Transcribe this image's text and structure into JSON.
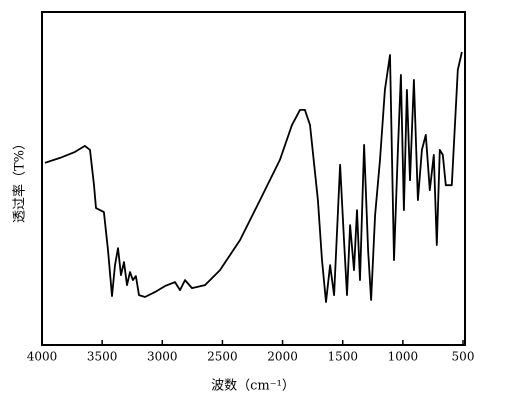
{
  "chart_data": {
    "type": "line",
    "x_label": "波数（cm⁻¹）",
    "y_label": "透过率（T%）",
    "x": [
      3975,
      3850,
      3726,
      3643,
      3601,
      3568,
      3551,
      3485,
      3451,
      3418,
      3393,
      3368,
      3343,
      3318,
      3293,
      3268,
      3244,
      3219,
      3194,
      3144,
      3061,
      2978,
      2894,
      2853,
      2811,
      2753,
      2645,
      2520,
      2354,
      2188,
      2022,
      1922,
      1855,
      1814,
      1772,
      1706,
      1672,
      1639,
      1605,
      1572,
      1522,
      1489,
      1464,
      1439,
      1406,
      1381,
      1356,
      1322,
      1289,
      1264,
      1231,
      1190,
      1149,
      1107,
      1074,
      1041,
      1016,
      991,
      966,
      941,
      908,
      875,
      842,
      809,
      776,
      743,
      718,
      693,
      668,
      643,
      593,
      543,
      509
    ],
    "values": [
      54.7,
      56.2,
      58.0,
      59.8,
      58.6,
      48.0,
      41.1,
      39.9,
      28.5,
      14.7,
      24.0,
      29.1,
      21.0,
      24.9,
      18.0,
      21.9,
      19.5,
      20.7,
      15.0,
      14.4,
      15.9,
      17.7,
      18.9,
      16.5,
      19.5,
      17.1,
      18.0,
      22.5,
      31.5,
      43.5,
      55.6,
      66.1,
      70.6,
      70.6,
      66.1,
      43.5,
      25.5,
      12.9,
      24.0,
      15.0,
      54.1,
      31.5,
      15.0,
      36.0,
      22.5,
      40.5,
      19.5,
      60.1,
      28.5,
      13.5,
      39.0,
      55.6,
      76.6,
      87.1,
      25.5,
      58.6,
      81.1,
      40.5,
      76.6,
      49.5,
      79.6,
      43.5,
      58.6,
      63.1,
      46.5,
      57.1,
      30.0,
      58.6,
      57.1,
      48.0,
      48.0,
      82.6,
      88.0
    ],
    "color": "#000000",
    "xlim": [
      4000,
      500
    ],
    "xticks": [
      4000,
      3500,
      3000,
      2500,
      2000,
      1500,
      1000,
      500
    ],
    "ylim": [
      0,
      100
    ]
  }
}
